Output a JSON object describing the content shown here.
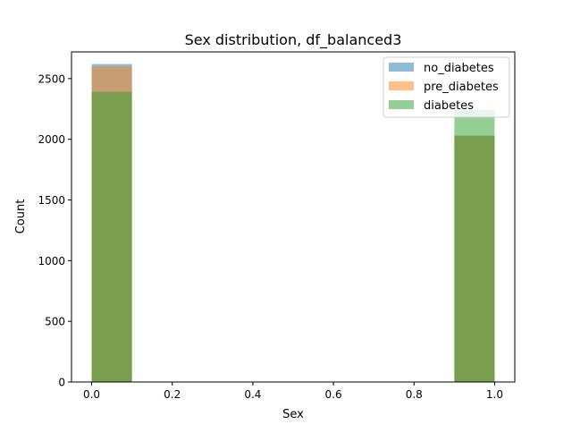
{
  "chart_data": {
    "type": "bar",
    "title": "Sex distribution, df_balanced3",
    "xlabel": "Sex",
    "ylabel": "Count",
    "xlim": [
      -0.05,
      1.05
    ],
    "ylim": [
      0,
      2720
    ],
    "xticks": [
      0.0,
      0.2,
      0.4,
      0.6,
      0.8,
      1.0
    ],
    "xtick_labels": [
      "0.0",
      "0.2",
      "0.4",
      "0.6",
      "0.8",
      "1.0"
    ],
    "yticks": [
      0,
      500,
      1000,
      1500,
      2000,
      2500
    ],
    "ytick_labels": [
      "0",
      "500",
      "1000",
      "1500",
      "2000",
      "2500"
    ],
    "bins": [
      [
        0.0,
        0.1
      ],
      [
        0.9,
        1.0
      ]
    ],
    "series": [
      {
        "name": "no_diabetes",
        "color": "#1f77b4",
        "values": [
          2620,
          2030
        ]
      },
      {
        "name": "pre_diabetes",
        "color": "#ff7f0e",
        "values": [
          2600,
          2030
        ]
      },
      {
        "name": "diabetes",
        "color": "#2ca02c",
        "values": [
          2390,
          2240
        ]
      }
    ],
    "bar_opacity": 0.5,
    "legend_position": "top-right",
    "grid": false
  }
}
